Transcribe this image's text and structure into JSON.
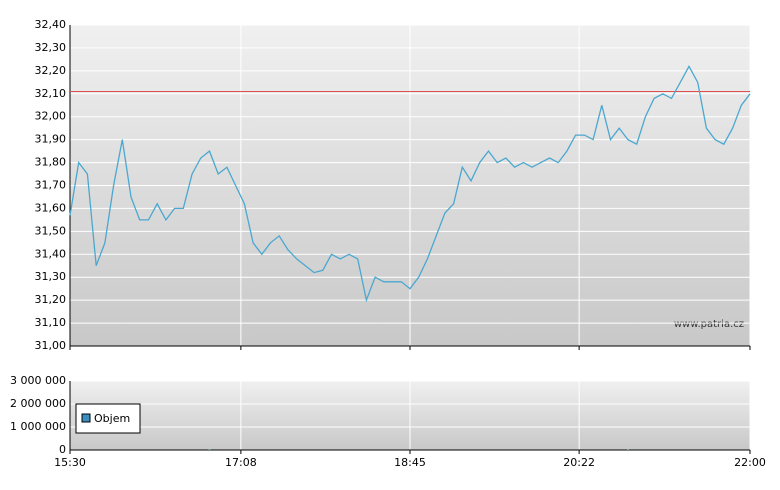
{
  "watermark": "www.patria.cz",
  "chart_data": [
    {
      "type": "line",
      "x": [
        "15:30",
        "15:35",
        "15:40",
        "15:45",
        "15:50",
        "15:55",
        "16:00",
        "16:05",
        "16:10",
        "16:15",
        "16:20",
        "16:25",
        "16:30",
        "16:35",
        "16:40",
        "16:45",
        "16:50",
        "16:55",
        "17:00",
        "17:05",
        "17:10",
        "17:15",
        "17:20",
        "17:25",
        "17:30",
        "17:35",
        "17:40",
        "17:45",
        "17:50",
        "17:55",
        "18:00",
        "18:05",
        "18:10",
        "18:15",
        "18:20",
        "18:25",
        "18:30",
        "18:35",
        "18:40",
        "18:45",
        "18:50",
        "18:55",
        "19:00",
        "19:05",
        "19:10",
        "19:15",
        "19:20",
        "19:25",
        "19:30",
        "19:35",
        "19:40",
        "19:45",
        "19:50",
        "19:55",
        "20:00",
        "20:05",
        "20:10",
        "20:15",
        "20:20",
        "20:25",
        "20:30",
        "20:35",
        "20:40",
        "20:45",
        "20:50",
        "20:55",
        "21:00",
        "21:05",
        "21:10",
        "21:15",
        "21:20",
        "21:25",
        "21:30",
        "21:35",
        "21:40",
        "21:45",
        "21:50",
        "21:55",
        "22:00"
      ],
      "series": [
        {
          "color": "#4aa8d0",
          "values": [
            31.57,
            31.8,
            31.75,
            31.35,
            31.45,
            31.7,
            31.9,
            31.65,
            31.55,
            31.55,
            31.62,
            31.55,
            31.6,
            31.6,
            31.75,
            31.82,
            31.85,
            31.75,
            31.78,
            31.7,
            31.62,
            31.45,
            31.4,
            31.45,
            31.48,
            31.42,
            31.38,
            31.35,
            31.32,
            31.33,
            31.4,
            31.38,
            31.4,
            31.38,
            31.2,
            31.3,
            31.28,
            31.28,
            31.28,
            31.25,
            31.3,
            31.38,
            31.48,
            31.58,
            31.62,
            31.78,
            31.72,
            31.8,
            31.85,
            31.8,
            31.82,
            31.78,
            31.8,
            31.78,
            31.8,
            31.82,
            31.8,
            31.85,
            31.92,
            31.92,
            31.9,
            32.05,
            31.9,
            31.95,
            31.9,
            31.88,
            32.0,
            32.08,
            32.1,
            32.08,
            32.15,
            32.22,
            32.15,
            31.95,
            31.9,
            31.88,
            31.95,
            32.05,
            32.1
          ]
        }
      ],
      "reference_line": {
        "value": 32.11,
        "color": "#e05050"
      },
      "xlim": [
        "15:30",
        "22:00"
      ],
      "ylim": [
        31.0,
        32.4
      ],
      "yticks": [
        {
          "value": 31.0,
          "label": "31,00"
        },
        {
          "value": 31.1,
          "label": "31,10"
        },
        {
          "value": 31.2,
          "label": "31,20"
        },
        {
          "value": 31.3,
          "label": "31,30"
        },
        {
          "value": 31.4,
          "label": "31,40"
        },
        {
          "value": 31.5,
          "label": "31,50"
        },
        {
          "value": 31.6,
          "label": "31,60"
        },
        {
          "value": 31.7,
          "label": "31,70"
        },
        {
          "value": 31.8,
          "label": "31,80"
        },
        {
          "value": 31.9,
          "label": "31,90"
        },
        {
          "value": 32.0,
          "label": "32,00"
        },
        {
          "value": 32.1,
          "label": "32,10"
        },
        {
          "value": 32.2,
          "label": "32,20"
        },
        {
          "value": 32.3,
          "label": "32,30"
        },
        {
          "value": 32.4,
          "label": "32,40"
        }
      ],
      "grid": true
    },
    {
      "type": "bar",
      "x": [
        "16:50",
        "20:50"
      ],
      "series": [
        {
          "name": "Objem",
          "color": "#3a8fc0",
          "values": [
            20000,
            20000
          ]
        }
      ],
      "xlim": [
        "15:30",
        "22:00"
      ],
      "xticks": [
        "15:30",
        "17:08",
        "18:45",
        "20:22",
        "22:00"
      ],
      "ylim": [
        0,
        3000000
      ],
      "yticks": [
        0,
        {
          "value": 1000000,
          "label": "1 000 000"
        },
        {
          "value": 2000000,
          "label": "2 000 000"
        },
        {
          "value": 3000000,
          "label": "3 000 000"
        }
      ],
      "grid": true,
      "legend": "top-left"
    }
  ]
}
